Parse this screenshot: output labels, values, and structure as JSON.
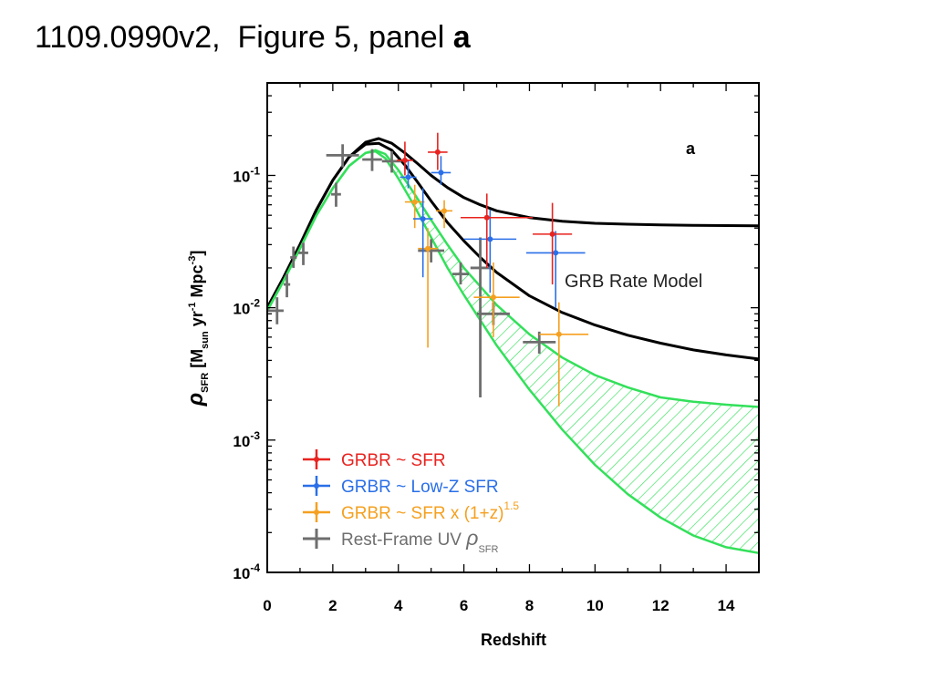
{
  "page": {
    "title_text": "1109.0990v2,  Figure 5, panel ",
    "title_bold": "a"
  },
  "chart_data": {
    "type": "scatter",
    "panel_label": "a",
    "xlabel": "Redshift",
    "ylabel": "ρ_SFR [M_sun yr^-1 Mpc^-3]",
    "xlim": [
      0,
      15
    ],
    "ylim": [
      0.0001,
      0.5
    ],
    "yscale": "log",
    "grid": false,
    "legend_position": "bottom-left",
    "x_ticks": [
      "0",
      "2",
      "4",
      "6",
      "8",
      "10",
      "12",
      "14"
    ],
    "y_ticks": [
      {
        "value": 0.1,
        "base": "10",
        "exp": "-1"
      },
      {
        "value": 0.01,
        "base": "10",
        "exp": "-2"
      },
      {
        "value": 0.001,
        "base": "10",
        "exp": "-3"
      },
      {
        "value": 0.0001,
        "base": "10",
        "exp": "-4"
      }
    ],
    "annotations": [
      {
        "text": "GRB Rate Model",
        "x": 7.3,
        "y": 0.0125
      }
    ],
    "colors": {
      "red": "#e8231f",
      "blue": "#2a6fe8",
      "orange": "#f5a020",
      "gray": "#6e6e6e",
      "green": "#33e05a",
      "black": "#000000"
    },
    "curves": [
      {
        "id": "grb-model-upper",
        "color": "#000000",
        "x": [
          0,
          0.5,
          1,
          1.5,
          2,
          2.5,
          3,
          3.4,
          3.8,
          4.2,
          4.6,
          5,
          5.5,
          6,
          6.5,
          7,
          8,
          9,
          10,
          11,
          12,
          13,
          14,
          15
        ],
        "y": [
          0.01,
          0.017,
          0.03,
          0.055,
          0.092,
          0.138,
          0.178,
          0.19,
          0.175,
          0.148,
          0.122,
          0.1,
          0.081,
          0.068,
          0.06,
          0.054,
          0.048,
          0.045,
          0.0435,
          0.0428,
          0.0423,
          0.042,
          0.0418,
          0.0416
        ]
      },
      {
        "id": "grb-model-lower",
        "color": "#000000",
        "x": [
          0,
          0.5,
          1,
          1.5,
          2,
          2.5,
          3,
          3.4,
          3.8,
          4.2,
          4.6,
          5,
          5.5,
          6,
          6.5,
          7,
          8,
          9,
          10,
          11,
          12,
          13,
          14,
          15
        ],
        "y": [
          0.01,
          0.017,
          0.03,
          0.055,
          0.092,
          0.138,
          0.172,
          0.175,
          0.155,
          0.12,
          0.088,
          0.064,
          0.044,
          0.032,
          0.024,
          0.0185,
          0.0123,
          0.0092,
          0.0074,
          0.0062,
          0.0054,
          0.0048,
          0.0044,
          0.0041
        ]
      },
      {
        "id": "sfr-band-upper",
        "color": "#33e05a",
        "x": [
          0,
          0.5,
          1,
          1.5,
          2,
          2.5,
          3,
          3.3,
          3.6,
          4,
          4.5,
          5,
          5.5,
          6,
          7,
          8,
          9,
          10,
          11,
          12,
          13,
          14,
          15
        ],
        "y": [
          0.0095,
          0.016,
          0.028,
          0.05,
          0.08,
          0.118,
          0.148,
          0.155,
          0.145,
          0.11,
          0.072,
          0.046,
          0.03,
          0.02,
          0.0105,
          0.0063,
          0.0042,
          0.0031,
          0.0025,
          0.0021,
          0.00195,
          0.00185,
          0.00178
        ]
      },
      {
        "id": "sfr-band-lower",
        "color": "#33e05a",
        "x": [
          0,
          0.5,
          1,
          1.5,
          2,
          2.5,
          3,
          3.3,
          3.6,
          4,
          4.5,
          5,
          5.5,
          6,
          7,
          8,
          9,
          10,
          11,
          12,
          13,
          14,
          15
        ],
        "y": [
          0.0095,
          0.016,
          0.028,
          0.05,
          0.08,
          0.118,
          0.148,
          0.152,
          0.135,
          0.095,
          0.058,
          0.034,
          0.02,
          0.0125,
          0.0052,
          0.0024,
          0.0012,
          0.00065,
          0.00039,
          0.00026,
          0.00019,
          0.000155,
          0.00014
        ]
      }
    ],
    "series": [
      {
        "name": "GRBR ~ SFR",
        "color": "#e8231f",
        "points": [
          {
            "x": 4.2,
            "y": 0.13,
            "xerr": [
              0.25,
              0.25
            ],
            "yerr": [
              0.1,
              0.18
            ]
          },
          {
            "x": 5.2,
            "y": 0.15,
            "xerr": [
              0.3,
              0.3
            ],
            "yerr": [
              0.11,
              0.21
            ]
          },
          {
            "x": 6.7,
            "y": 0.048,
            "xerr": [
              0.8,
              1.4
            ],
            "yerr": [
              0.02,
              0.073
            ]
          },
          {
            "x": 8.7,
            "y": 0.036,
            "xerr": [
              0.6,
              0.6
            ],
            "yerr": [
              0.015,
              0.062
            ]
          }
        ]
      },
      {
        "name": "GRBR ~ Low-Z SFR",
        "color": "#2a6fe8",
        "points": [
          {
            "x": 4.3,
            "y": 0.097,
            "xerr": [
              0.25,
              0.25
            ],
            "yerr": [
              0.08,
              0.13
            ]
          },
          {
            "x": 5.3,
            "y": 0.105,
            "xerr": [
              0.3,
              0.3
            ],
            "yerr": [
              0.085,
              0.14
            ]
          },
          {
            "x": 4.75,
            "y": 0.047,
            "xerr": [
              0.3,
              0.3
            ],
            "yerr": [
              0.017,
              0.08
            ]
          },
          {
            "x": 6.8,
            "y": 0.033,
            "xerr": [
              0.8,
              0.8
            ],
            "yerr": [
              0.013,
              0.055
            ]
          },
          {
            "x": 8.8,
            "y": 0.026,
            "xerr": [
              0.9,
              0.9
            ],
            "yerr": [
              0.01,
              0.038
            ]
          }
        ]
      },
      {
        "name": "GRBR ~ SFR x (1+z)^1.5",
        "color": "#f5a020",
        "points": [
          {
            "x": 4.5,
            "y": 0.063,
            "xerr": [
              0.3,
              0.3
            ],
            "yerr": [
              0.04,
              0.085
            ]
          },
          {
            "x": 5.4,
            "y": 0.054,
            "xerr": [
              0.25,
              0.25
            ],
            "yerr": [
              0.04,
              0.065
            ]
          },
          {
            "x": 4.9,
            "y": 0.028,
            "xerr": [
              0.3,
              0.3
            ],
            "yerr": [
              0.005,
              0.04
            ]
          },
          {
            "x": 6.9,
            "y": 0.012,
            "xerr": [
              0.6,
              0.8
            ],
            "yerr": [
              0.006,
              0.022
            ]
          },
          {
            "x": 8.9,
            "y": 0.0063,
            "xerr": [
              0.6,
              0.9
            ],
            "yerr": [
              0.0018,
              0.011
            ]
          }
        ]
      },
      {
        "name": "Rest-Frame UV ρ_SFR",
        "color": "#6e6e6e",
        "points": [
          {
            "x": 0.3,
            "y": 0.0095,
            "xerr": [
              0.3,
              0.2
            ],
            "yerr": [
              0.0075,
              0.012
            ]
          },
          {
            "x": 0.6,
            "y": 0.015,
            "xerr": [
              0.1,
              0.1
            ],
            "yerr": [
              0.012,
              0.018
            ]
          },
          {
            "x": 0.8,
            "y": 0.024,
            "xerr": [
              0.1,
              0.1
            ],
            "yerr": [
              0.02,
              0.029
            ]
          },
          {
            "x": 1.1,
            "y": 0.026,
            "xerr": [
              0.15,
              0.15
            ],
            "yerr": [
              0.021,
              0.031
            ]
          },
          {
            "x": 2.1,
            "y": 0.072,
            "xerr": [
              0.15,
              0.15
            ],
            "yerr": [
              0.058,
              0.088
            ]
          },
          {
            "x": 2.3,
            "y": 0.142,
            "xerr": [
              0.5,
              0.5
            ],
            "yerr": [
              0.115,
              0.172
            ]
          },
          {
            "x": 3.2,
            "y": 0.132,
            "xerr": [
              0.3,
              0.3
            ],
            "yerr": [
              0.108,
              0.158
            ]
          },
          {
            "x": 3.8,
            "y": 0.128,
            "xerr": [
              0.3,
              0.3
            ],
            "yerr": [
              0.105,
              0.152
            ]
          },
          {
            "x": 5.0,
            "y": 0.027,
            "xerr": [
              0.4,
              0.4
            ],
            "yerr": [
              0.022,
              0.033
            ]
          },
          {
            "x": 5.9,
            "y": 0.018,
            "xerr": [
              0.25,
              0.25
            ],
            "yerr": [
              0.015,
              0.022
            ]
          },
          {
            "x": 6.5,
            "y": 0.02,
            "xerr": [
              0.3,
              0.3
            ],
            "yerr": [
              0.0021,
              0.034
            ]
          },
          {
            "x": 6.9,
            "y": 0.009,
            "xerr": [
              0.5,
              0.5
            ],
            "yerr": [
              0.0074,
              0.011
            ]
          },
          {
            "x": 8.3,
            "y": 0.0055,
            "xerr": [
              0.5,
              0.5
            ],
            "yerr": [
              0.0045,
              0.0066
            ]
          }
        ]
      }
    ],
    "legend": [
      {
        "label": "GRBR ~ SFR",
        "color": "#e8231f"
      },
      {
        "label": "GRBR ~ Low-Z SFR",
        "color": "#2a6fe8"
      },
      {
        "label": "GRBR ~ SFR x (1+z)",
        "sup": "1.5",
        "color": "#f5a020"
      },
      {
        "label": "Rest-Frame UV ",
        "symbol": "ρ",
        "sub": "SFR",
        "color": "#6e6e6e"
      }
    ]
  }
}
